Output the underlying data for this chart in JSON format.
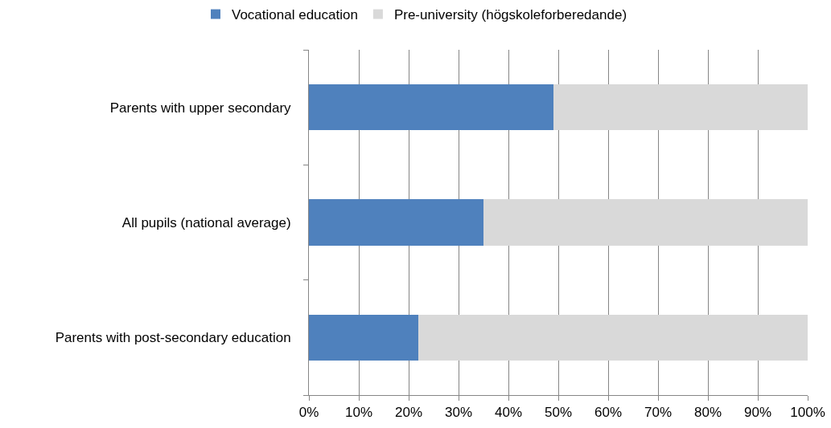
{
  "chart_data": {
    "type": "bar",
    "orientation": "horizontal",
    "stacked": true,
    "categories": [
      "Parents with upper secondary",
      "All pupils (national average)",
      "Parents with post-secondary education"
    ],
    "series": [
      {
        "name": "Vocational education",
        "color": "#4f81bd",
        "values": [
          49,
          35,
          22
        ]
      },
      {
        "name": "Pre-university (högskoleforberedande)",
        "color": "#d9d9d9",
        "values": [
          51,
          65,
          78
        ]
      }
    ],
    "xlim": [
      0,
      100
    ],
    "xticks": [
      {
        "value": 0,
        "label": "0%"
      },
      {
        "value": 10,
        "label": "10%"
      },
      {
        "value": 20,
        "label": "20%"
      },
      {
        "value": 30,
        "label": "30%"
      },
      {
        "value": 40,
        "label": "40%"
      },
      {
        "value": 50,
        "label": "50%"
      },
      {
        "value": 60,
        "label": "60%"
      },
      {
        "value": 70,
        "label": "70%"
      },
      {
        "value": 80,
        "label": "80%"
      },
      {
        "value": 90,
        "label": "90%"
      },
      {
        "value": 100,
        "label": "100%"
      }
    ],
    "grid": "x",
    "legend": "top"
  }
}
